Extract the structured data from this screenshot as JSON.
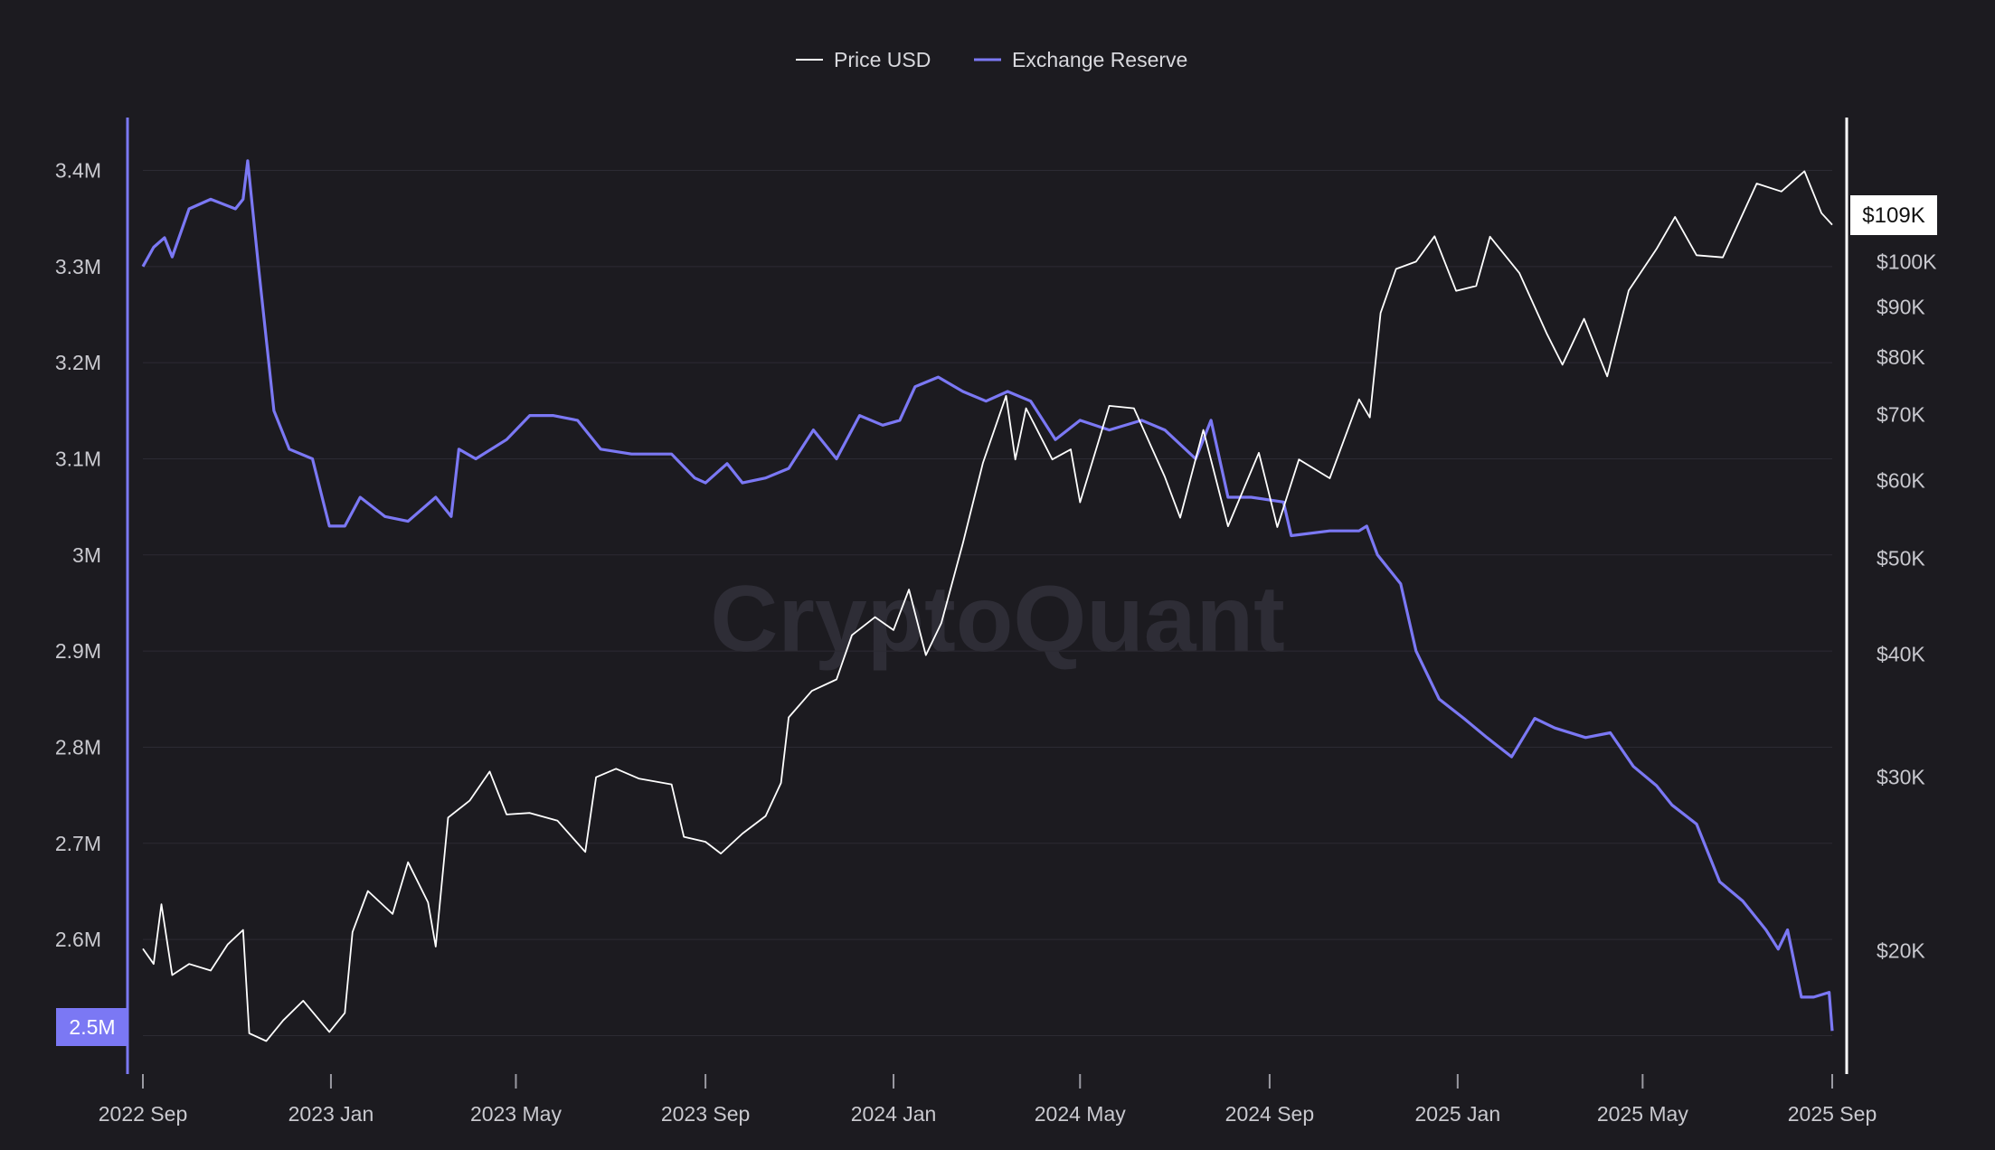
{
  "watermark": "CryptoQuant",
  "legend": [
    {
      "label": "Price USD",
      "color": "#ffffff"
    },
    {
      "label": "Exchange Reserve",
      "color": "#7b78f4"
    }
  ],
  "left_axis": {
    "ticks": [
      {
        "v": 2.5,
        "label": "2.5M"
      },
      {
        "v": 2.6,
        "label": "2.6M"
      },
      {
        "v": 2.7,
        "label": "2.7M"
      },
      {
        "v": 2.8,
        "label": "2.8M"
      },
      {
        "v": 2.9,
        "label": "2.9M"
      },
      {
        "v": 3.0,
        "label": "3M"
      },
      {
        "v": 3.1,
        "label": "3.1M"
      },
      {
        "v": 3.2,
        "label": "3.2M"
      },
      {
        "v": 3.3,
        "label": "3.3M"
      },
      {
        "v": 3.4,
        "label": "3.4M"
      }
    ],
    "current_label": "2.5M"
  },
  "right_axis": {
    "scale": "log",
    "ticks": [
      {
        "v": 20000,
        "label": "$20K"
      },
      {
        "v": 30000,
        "label": "$30K"
      },
      {
        "v": 40000,
        "label": "$40K"
      },
      {
        "v": 50000,
        "label": "$50K"
      },
      {
        "v": 60000,
        "label": "$60K"
      },
      {
        "v": 70000,
        "label": "$70K"
      },
      {
        "v": 80000,
        "label": "$80K"
      },
      {
        "v": 90000,
        "label": "$90K"
      },
      {
        "v": 100000,
        "label": "$100K"
      }
    ],
    "current_label": "$109K"
  },
  "x_axis": {
    "ticks": [
      {
        "date": "2022-09-01",
        "label": "2022 Sep"
      },
      {
        "date": "2023-01-01",
        "label": "2023 Jan"
      },
      {
        "date": "2023-05-01",
        "label": "2023 May"
      },
      {
        "date": "2023-09-01",
        "label": "2023 Sep"
      },
      {
        "date": "2024-01-01",
        "label": "2024 Jan"
      },
      {
        "date": "2024-05-01",
        "label": "2024 May"
      },
      {
        "date": "2024-09-01",
        "label": "2024 Sep"
      },
      {
        "date": "2025-01-01",
        "label": "2025 Jan"
      },
      {
        "date": "2025-05-01",
        "label": "2025 May"
      },
      {
        "date": "2025-09-01",
        "label": "2025 Sep"
      }
    ]
  },
  "chart_data": {
    "type": "line",
    "title": "",
    "xlabel": "",
    "ylabel": "",
    "grid": true,
    "legend_position": "top-center",
    "xlim": [
      "2022-09-01",
      "2025-09-01"
    ],
    "series": [
      {
        "name": "Price USD",
        "axis": "right",
        "color": "#ffffff",
        "ylim": [
          15000,
          140000
        ],
        "points": [
          [
            "2022-09-01",
            20100
          ],
          [
            "2022-09-08",
            19400
          ],
          [
            "2022-09-13",
            22300
          ],
          [
            "2022-09-20",
            18900
          ],
          [
            "2022-10-01",
            19400
          ],
          [
            "2022-10-15",
            19100
          ],
          [
            "2022-10-26",
            20300
          ],
          [
            "2022-11-05",
            21000
          ],
          [
            "2022-11-09",
            16500
          ],
          [
            "2022-11-20",
            16200
          ],
          [
            "2022-12-01",
            17000
          ],
          [
            "2022-12-14",
            17800
          ],
          [
            "2022-12-31",
            16550
          ],
          [
            "2023-01-10",
            17300
          ],
          [
            "2023-01-15",
            20900
          ],
          [
            "2023-01-25",
            23000
          ],
          [
            "2023-02-10",
            21800
          ],
          [
            "2023-02-20",
            24600
          ],
          [
            "2023-03-05",
            22400
          ],
          [
            "2023-03-10",
            20200
          ],
          [
            "2023-03-18",
            27300
          ],
          [
            "2023-04-01",
            28400
          ],
          [
            "2023-04-14",
            30400
          ],
          [
            "2023-04-25",
            27500
          ],
          [
            "2023-05-10",
            27600
          ],
          [
            "2023-05-28",
            27100
          ],
          [
            "2023-06-15",
            25200
          ],
          [
            "2023-06-22",
            30000
          ],
          [
            "2023-07-05",
            30600
          ],
          [
            "2023-07-20",
            29900
          ],
          [
            "2023-08-10",
            29500
          ],
          [
            "2023-08-18",
            26100
          ],
          [
            "2023-09-01",
            25800
          ],
          [
            "2023-09-11",
            25100
          ],
          [
            "2023-09-25",
            26300
          ],
          [
            "2023-10-10",
            27400
          ],
          [
            "2023-10-20",
            29600
          ],
          [
            "2023-10-25",
            34500
          ],
          [
            "2023-11-09",
            36700
          ],
          [
            "2023-11-25",
            37700
          ],
          [
            "2023-12-05",
            41800
          ],
          [
            "2023-12-20",
            43600
          ],
          [
            "2024-01-01",
            42300
          ],
          [
            "2024-01-11",
            46500
          ],
          [
            "2024-01-22",
            39900
          ],
          [
            "2024-02-01",
            43000
          ],
          [
            "2024-02-15",
            51800
          ],
          [
            "2024-02-28",
            62500
          ],
          [
            "2024-03-14",
            73100
          ],
          [
            "2024-03-20",
            63000
          ],
          [
            "2024-03-27",
            71000
          ],
          [
            "2024-04-13",
            63000
          ],
          [
            "2024-04-25",
            64500
          ],
          [
            "2024-05-01",
            57000
          ],
          [
            "2024-05-20",
            71400
          ],
          [
            "2024-06-05",
            71000
          ],
          [
            "2024-06-25",
            60500
          ],
          [
            "2024-07-05",
            55000
          ],
          [
            "2024-07-20",
            67500
          ],
          [
            "2024-08-05",
            53900
          ],
          [
            "2024-08-25",
            64000
          ],
          [
            "2024-09-06",
            53800
          ],
          [
            "2024-09-20",
            63000
          ],
          [
            "2024-10-10",
            60300
          ],
          [
            "2024-10-29",
            72500
          ],
          [
            "2024-11-05",
            69500
          ],
          [
            "2024-11-12",
            88700
          ],
          [
            "2024-11-22",
            98300
          ],
          [
            "2024-12-05",
            100000
          ],
          [
            "2024-12-17",
            106100
          ],
          [
            "2024-12-31",
            93400
          ],
          [
            "2025-01-13",
            94500
          ],
          [
            "2025-01-22",
            106000
          ],
          [
            "2025-02-10",
            97400
          ],
          [
            "2025-02-28",
            84400
          ],
          [
            "2025-03-10",
            78600
          ],
          [
            "2025-03-24",
            87500
          ],
          [
            "2025-04-08",
            76500
          ],
          [
            "2025-04-22",
            93500
          ],
          [
            "2025-05-10",
            103000
          ],
          [
            "2025-05-22",
            111000
          ],
          [
            "2025-06-05",
            101500
          ],
          [
            "2025-06-22",
            101000
          ],
          [
            "2025-07-14",
            120000
          ],
          [
            "2025-07-30",
            117800
          ],
          [
            "2025-08-14",
            123500
          ],
          [
            "2025-08-25",
            112000
          ],
          [
            "2025-09-01",
            109000
          ]
        ]
      },
      {
        "name": "Exchange Reserve",
        "axis": "left",
        "color": "#7b78f4",
        "ylim": [
          2.46,
          3.455
        ],
        "points": [
          [
            "2022-09-01",
            3.3
          ],
          [
            "2022-09-08",
            3.32
          ],
          [
            "2022-09-15",
            3.33
          ],
          [
            "2022-09-20",
            3.31
          ],
          [
            "2022-10-01",
            3.36
          ],
          [
            "2022-10-15",
            3.37
          ],
          [
            "2022-10-31",
            3.36
          ],
          [
            "2022-11-05",
            3.37
          ],
          [
            "2022-11-08",
            3.41
          ],
          [
            "2022-11-15",
            3.3
          ],
          [
            "2022-11-25",
            3.15
          ],
          [
            "2022-12-05",
            3.11
          ],
          [
            "2022-12-20",
            3.1
          ],
          [
            "2022-12-31",
            3.03
          ],
          [
            "2023-01-10",
            3.03
          ],
          [
            "2023-01-20",
            3.06
          ],
          [
            "2023-02-05",
            3.04
          ],
          [
            "2023-02-20",
            3.035
          ],
          [
            "2023-03-10",
            3.06
          ],
          [
            "2023-03-20",
            3.04
          ],
          [
            "2023-03-25",
            3.11
          ],
          [
            "2023-04-05",
            3.1
          ],
          [
            "2023-04-25",
            3.12
          ],
          [
            "2023-05-10",
            3.145
          ],
          [
            "2023-05-25",
            3.145
          ],
          [
            "2023-06-10",
            3.14
          ],
          [
            "2023-06-25",
            3.11
          ],
          [
            "2023-07-15",
            3.105
          ],
          [
            "2023-08-10",
            3.105
          ],
          [
            "2023-08-25",
            3.08
          ],
          [
            "2023-09-01",
            3.075
          ],
          [
            "2023-09-15",
            3.095
          ],
          [
            "2023-09-25",
            3.075
          ],
          [
            "2023-10-10",
            3.08
          ],
          [
            "2023-10-25",
            3.09
          ],
          [
            "2023-11-10",
            3.13
          ],
          [
            "2023-11-25",
            3.1
          ],
          [
            "2023-12-10",
            3.145
          ],
          [
            "2023-12-25",
            3.135
          ],
          [
            "2024-01-05",
            3.14
          ],
          [
            "2024-01-15",
            3.175
          ],
          [
            "2024-01-30",
            3.185
          ],
          [
            "2024-02-15",
            3.17
          ],
          [
            "2024-03-01",
            3.16
          ],
          [
            "2024-03-15",
            3.17
          ],
          [
            "2024-03-30",
            3.16
          ],
          [
            "2024-04-15",
            3.12
          ],
          [
            "2024-05-01",
            3.14
          ],
          [
            "2024-05-20",
            3.13
          ],
          [
            "2024-06-10",
            3.14
          ],
          [
            "2024-06-25",
            3.13
          ],
          [
            "2024-07-15",
            3.1
          ],
          [
            "2024-07-25",
            3.14
          ],
          [
            "2024-08-05",
            3.06
          ],
          [
            "2024-08-20",
            3.06
          ],
          [
            "2024-09-10",
            3.055
          ],
          [
            "2024-09-15",
            3.02
          ],
          [
            "2024-10-10",
            3.025
          ],
          [
            "2024-10-29",
            3.025
          ],
          [
            "2024-11-03",
            3.03
          ],
          [
            "2024-11-10",
            3.0
          ],
          [
            "2024-11-25",
            2.97
          ],
          [
            "2024-12-05",
            2.9
          ],
          [
            "2024-12-20",
            2.85
          ],
          [
            "2025-01-05",
            2.83
          ],
          [
            "2025-01-20",
            2.81
          ],
          [
            "2025-02-05",
            2.79
          ],
          [
            "2025-02-20",
            2.83
          ],
          [
            "2025-03-05",
            2.82
          ],
          [
            "2025-03-25",
            2.81
          ],
          [
            "2025-04-10",
            2.815
          ],
          [
            "2025-04-25",
            2.78
          ],
          [
            "2025-05-10",
            2.76
          ],
          [
            "2025-05-20",
            2.74
          ],
          [
            "2025-06-05",
            2.72
          ],
          [
            "2025-06-20",
            2.66
          ],
          [
            "2025-07-05",
            2.64
          ],
          [
            "2025-07-20",
            2.61
          ],
          [
            "2025-07-28",
            2.59
          ],
          [
            "2025-08-03",
            2.61
          ],
          [
            "2025-08-12",
            2.54
          ],
          [
            "2025-08-20",
            2.54
          ],
          [
            "2025-08-30",
            2.545
          ],
          [
            "2025-09-01",
            2.505
          ]
        ]
      }
    ]
  }
}
